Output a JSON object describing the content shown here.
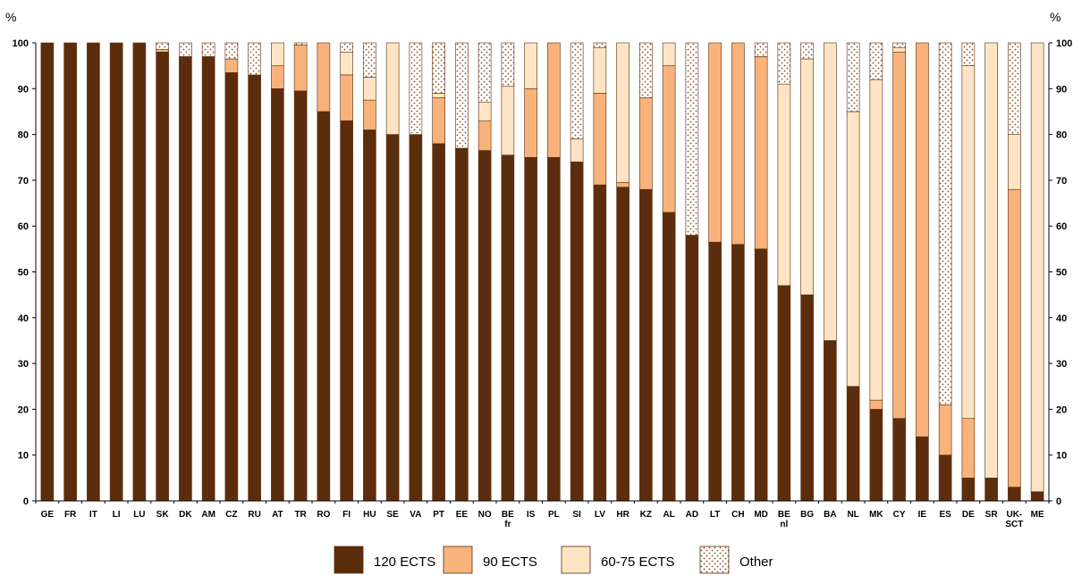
{
  "chart_data": {
    "type": "bar",
    "stacked": true,
    "ylabel_left": "%",
    "ylabel_right": "%",
    "ylim": [
      0,
      100
    ],
    "yticks": [
      0,
      10,
      20,
      30,
      40,
      50,
      60,
      70,
      80,
      90,
      100
    ],
    "grid": false,
    "legend_position": "bottom-center",
    "categories": [
      [
        "GE"
      ],
      [
        "FR"
      ],
      [
        "IT"
      ],
      [
        "LI"
      ],
      [
        "LU"
      ],
      [
        "SK"
      ],
      [
        "DK"
      ],
      [
        "AM"
      ],
      [
        "CZ"
      ],
      [
        "RU"
      ],
      [
        "AT"
      ],
      [
        "TR"
      ],
      [
        "RO"
      ],
      [
        "FI"
      ],
      [
        "HU"
      ],
      [
        "SE"
      ],
      [
        "VA"
      ],
      [
        "PT"
      ],
      [
        "EE"
      ],
      [
        "NO"
      ],
      [
        "BE",
        "fr"
      ],
      [
        "IS"
      ],
      [
        "PL"
      ],
      [
        "SI"
      ],
      [
        "LV"
      ],
      [
        "HR"
      ],
      [
        "KZ"
      ],
      [
        "AL"
      ],
      [
        "AD"
      ],
      [
        "LT"
      ],
      [
        "CH"
      ],
      [
        "MD"
      ],
      [
        "BE",
        "nl"
      ],
      [
        "BG"
      ],
      [
        "BA"
      ],
      [
        "NL"
      ],
      [
        "MK"
      ],
      [
        "CY"
      ],
      [
        "IE"
      ],
      [
        "ES"
      ],
      [
        "DE"
      ],
      [
        "SR"
      ],
      [
        "UK-",
        "SCT"
      ],
      [
        "ME"
      ]
    ],
    "series": [
      {
        "name": "120 ECTS",
        "color": "#5c2d0c",
        "values": [
          100,
          100,
          100,
          100,
          100,
          98,
          97,
          97,
          93.5,
          93,
          90,
          89.5,
          85,
          83,
          81,
          80,
          80,
          78,
          77,
          76.5,
          75.5,
          75,
          75,
          74,
          69,
          68.5,
          68,
          63,
          58,
          56.5,
          56,
          55,
          47,
          45,
          35,
          25,
          20,
          18,
          14,
          10,
          5,
          5,
          3,
          2
        ]
      },
      {
        "name": "90 ECTS",
        "color": "#f7b37b",
        "values": [
          0,
          0,
          0,
          0,
          0,
          0.5,
          0,
          0,
          3,
          0,
          5,
          10,
          15,
          10,
          6.5,
          0,
          0,
          10,
          0,
          6.5,
          0,
          15,
          25,
          0,
          20,
          1,
          20,
          32,
          0,
          43.5,
          44,
          42,
          0,
          0,
          0,
          0,
          2,
          80,
          86,
          11,
          13,
          0,
          65,
          0
        ]
      },
      {
        "name": "60-75 ECTS",
        "color": "#fde4c4",
        "values": [
          0,
          0,
          0,
          0,
          0,
          0,
          0,
          0,
          0,
          0,
          5,
          0,
          0,
          5,
          5,
          20,
          0,
          1,
          0,
          4,
          15,
          10,
          0,
          5,
          10,
          30.5,
          0,
          5,
          0,
          0,
          0,
          0,
          44,
          51.5,
          65,
          60,
          70,
          1,
          0,
          0,
          77,
          95,
          12,
          98
        ]
      },
      {
        "name": "Other",
        "color": "#8b4a1f",
        "pattern": "dots",
        "values": [
          0,
          0,
          0,
          0,
          0,
          1.5,
          3,
          3,
          3.5,
          7,
          0,
          0.5,
          0,
          2,
          7.5,
          0,
          20,
          11,
          23,
          13,
          9.5,
          0,
          0,
          21,
          1,
          0,
          12,
          0,
          42,
          0,
          0,
          3,
          9,
          3.5,
          0,
          15,
          8,
          1,
          0,
          79,
          5,
          0,
          20,
          0
        ]
      }
    ]
  }
}
